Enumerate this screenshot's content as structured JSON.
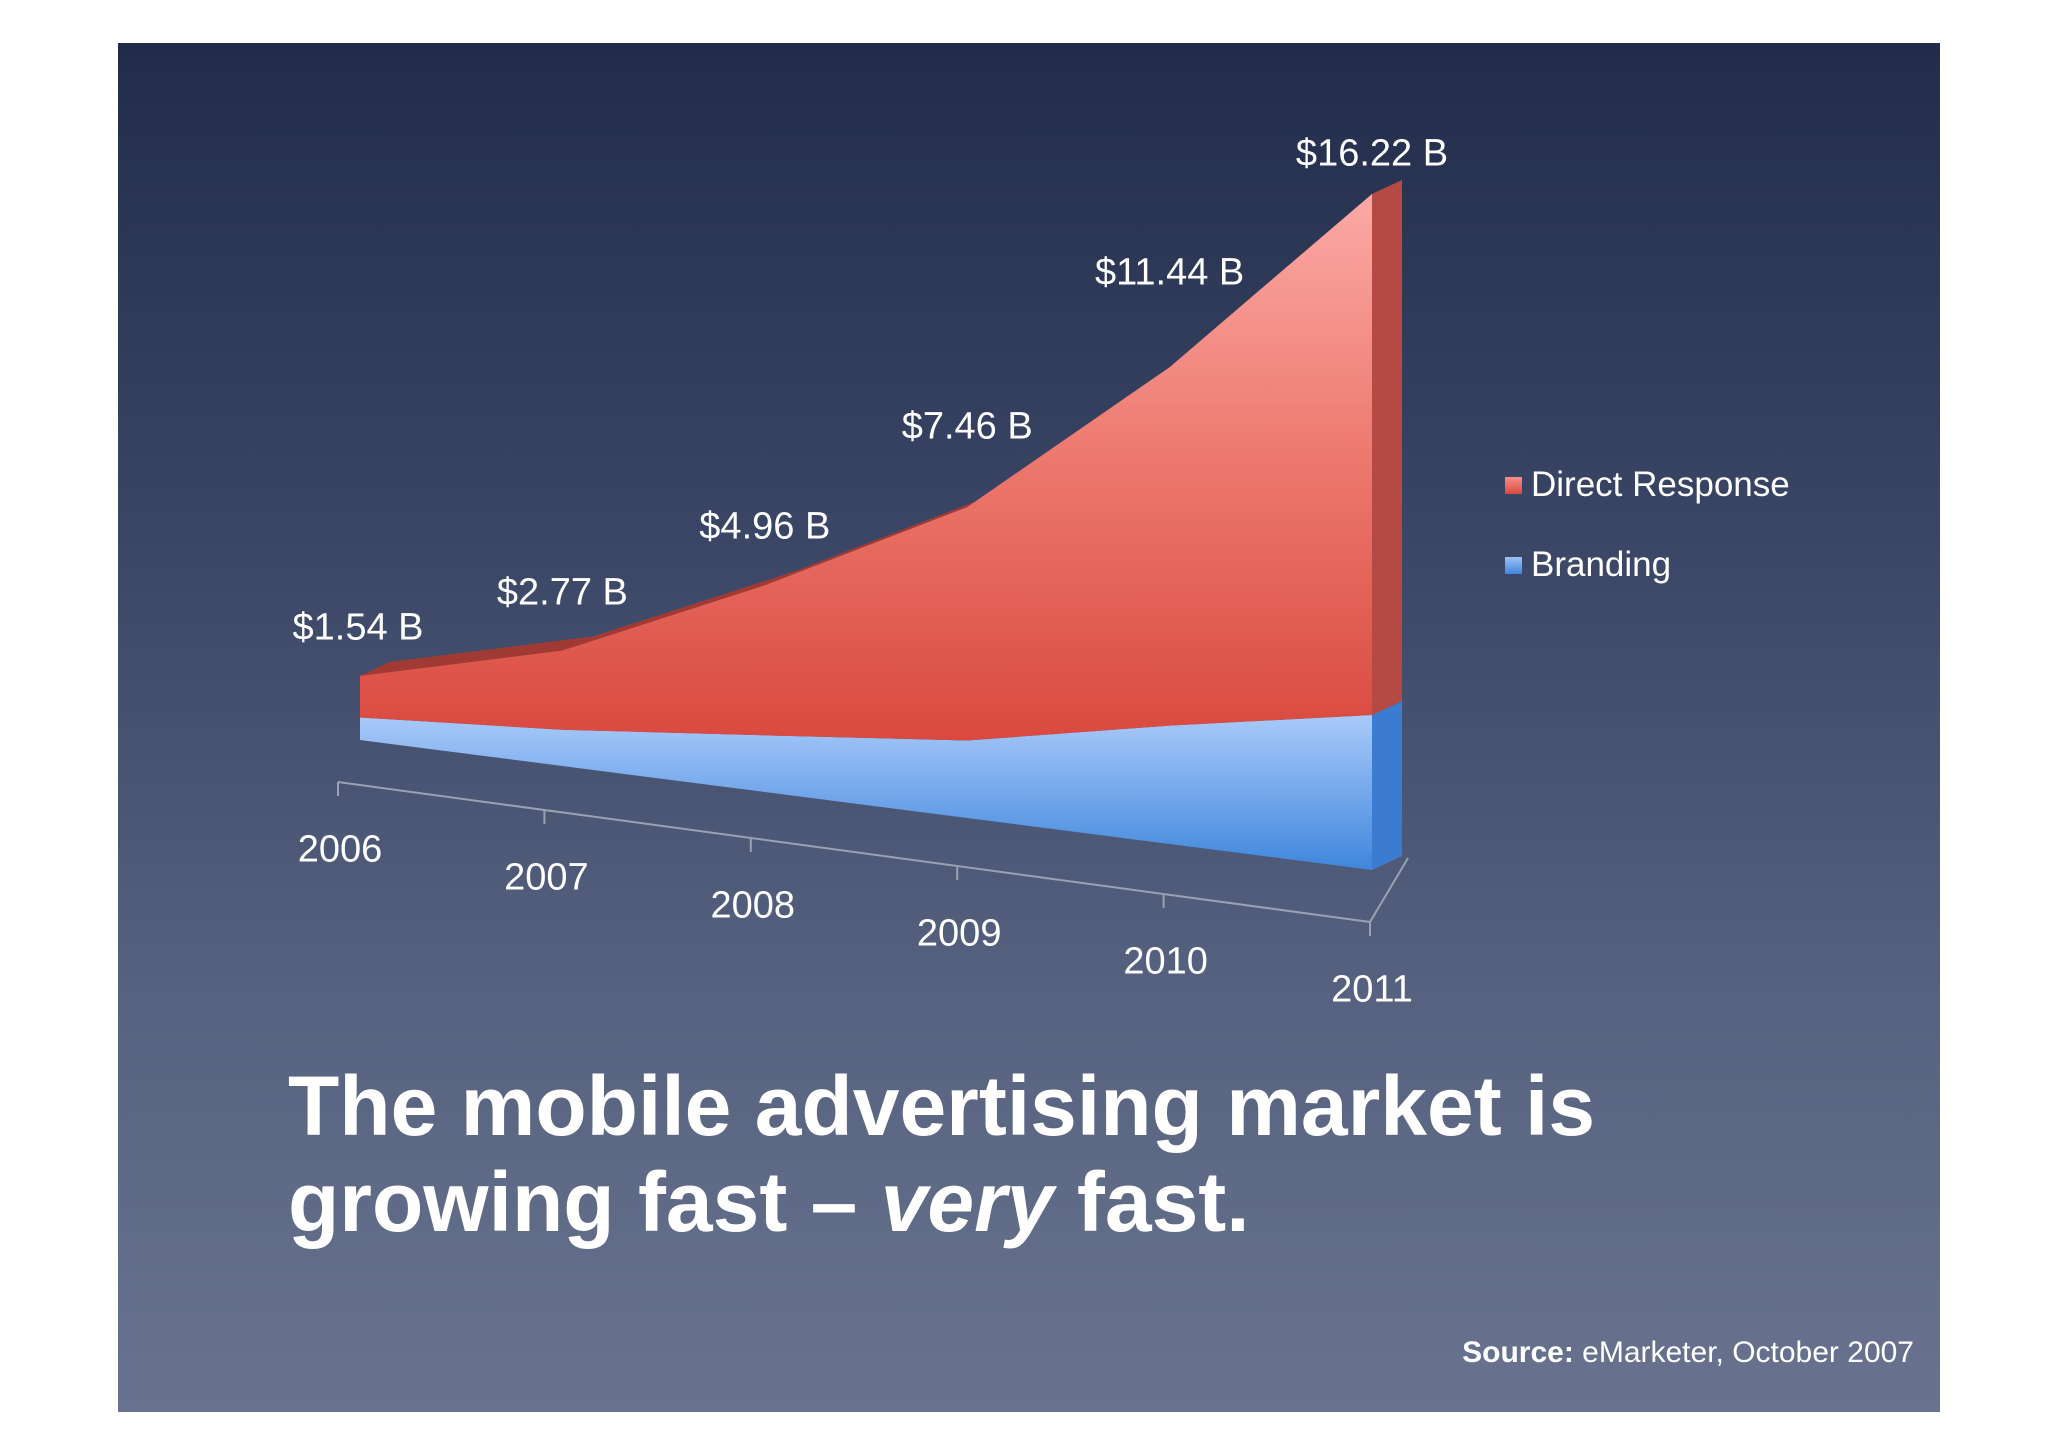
{
  "chart_data": {
    "type": "area",
    "title": "",
    "categories": [
      "2006",
      "2007",
      "2008",
      "2009",
      "2010",
      "2011"
    ],
    "total_labels": [
      "$1.54 B",
      "$2.77 B",
      "$4.96 B",
      "$7.46 B",
      "$11.44 B",
      "$16.22 B"
    ],
    "totals": [
      1.54,
      2.77,
      4.96,
      7.46,
      11.44,
      16.22
    ],
    "series": [
      {
        "name": "Direct Response",
        "color": "#e0574b",
        "values": [
          1.0,
          1.9,
          3.6,
          5.6,
          8.6,
          12.5
        ]
      },
      {
        "name": "Branding",
        "color": "#5b9be8",
        "values": [
          0.54,
          0.87,
          1.36,
          1.86,
          2.84,
          3.72
        ]
      }
    ],
    "legend_position": "right",
    "xlabel": "",
    "ylabel": ""
  },
  "headline": {
    "line1": "The mobile advertising market is",
    "line2_start": "growing fast – ",
    "line2_emph": "very",
    "line2_end": " fast."
  },
  "source": {
    "label": "Source:",
    "text": " eMarketer, October 2007"
  }
}
